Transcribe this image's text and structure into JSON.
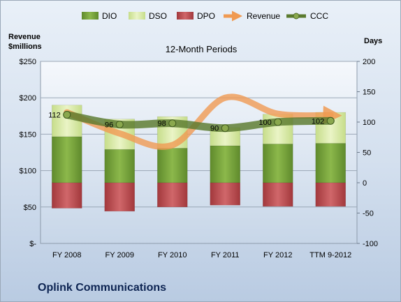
{
  "chart_data": {
    "type": "bar",
    "title": "12-Month Periods",
    "company": "Oplink Communications",
    "left_axis": {
      "title_line1": "Revenue",
      "title_line2": "$millions",
      "ticks": [
        "$-",
        "$50",
        "$100",
        "$150",
        "$200",
        "$250"
      ],
      "ylim": [
        0,
        250
      ]
    },
    "right_axis": {
      "title": "Days",
      "ticks": [
        "-100",
        "-50",
        "0",
        "50",
        "100",
        "150",
        "200"
      ],
      "ylim": [
        -100,
        200
      ]
    },
    "categories": [
      "FY 2008",
      "FY 2009",
      "FY 2010",
      "FY 2011",
      "FY 2012",
      "TTM 9-2012"
    ],
    "legend": [
      "DIO",
      "DSO",
      "DPO",
      "Revenue",
      "CCC"
    ],
    "legend_placement": "top",
    "grid": true,
    "stacked_series": [
      {
        "name": "DIO",
        "values": [
          76,
          55,
          57,
          61,
          64,
          65
        ],
        "color": "#76a03a"
      },
      {
        "name": "DSO",
        "values": [
          52,
          50,
          52,
          30,
          49,
          51
        ],
        "color": "#d9eaa6"
      },
      {
        "name": "DPO",
        "values": [
          -42,
          -47,
          -40,
          -37,
          -39,
          -39
        ],
        "color": "#bd4a4d"
      }
    ],
    "lines": [
      {
        "name": "Revenue",
        "axis": "left",
        "values": [
          180,
          151,
          135,
          200,
          178,
          176
        ],
        "color": "#f09a52"
      },
      {
        "name": "CCC",
        "axis": "right",
        "values": [
          112,
          96,
          98,
          90,
          100,
          102
        ],
        "labels": [
          "112",
          "96",
          "98",
          "90",
          "100",
          "102"
        ],
        "color": "#5a7a2e"
      }
    ]
  }
}
